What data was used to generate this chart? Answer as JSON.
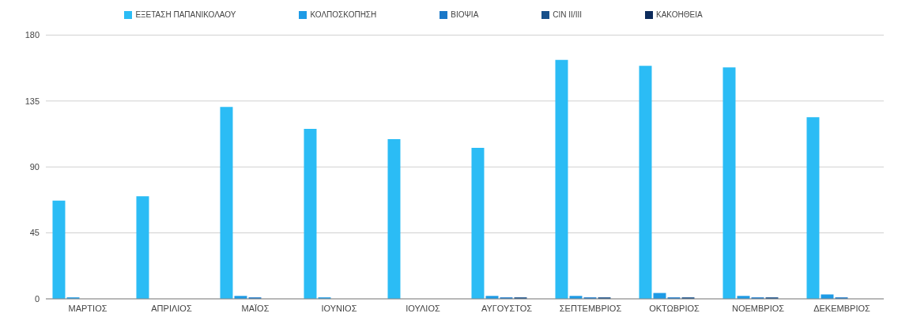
{
  "chart_data": {
    "type": "bar",
    "categories": [
      "ΜΑΡΤΙΟΣ",
      "ΑΠΡΙΛΙΟΣ",
      "ΜΑΪΟΣ",
      "ΙΟΥΝΙΟΣ",
      "ΙΟΥΛΙΟΣ",
      "ΑΥΓΟΥΣΤΟΣ",
      "ΣΕΠΤΕΜΒΡΙΟΣ",
      "ΟΚΤΩΒΡΙΟΣ",
      "ΝΟΕΜΒΡΙΟΣ",
      "ΔΕΚΕΜΒΡΙΟΣ"
    ],
    "series": [
      {
        "name": "ΕΞΕΤΑΣΗ ΠΑΠΑΝΙΚΟΛΑΟΥ",
        "color": "#2bbcf5",
        "values": [
          67,
          70,
          131,
          116,
          109,
          103,
          163,
          159,
          158,
          124
        ]
      },
      {
        "name": "ΚΟΛΠΟΣΚΟΠΗΣΗ",
        "color": "#1e9be6",
        "values": [
          1,
          0,
          2,
          1,
          0,
          2,
          2,
          4,
          2,
          3
        ]
      },
      {
        "name": "ΒΙΟΨΙΑ",
        "color": "#1a78c8",
        "values": [
          0,
          0,
          1,
          0,
          0,
          1,
          1,
          1,
          1,
          1
        ]
      },
      {
        "name": "CIN II/III",
        "color": "#164f8a",
        "values": [
          0,
          0,
          0,
          0,
          0,
          1,
          1,
          1,
          1,
          0
        ]
      },
      {
        "name": "ΚΑΚΟΗΘΕΙΑ",
        "color": "#0c2b5c",
        "values": [
          0,
          0,
          0,
          0,
          0,
          0,
          0,
          0,
          0,
          0
        ]
      }
    ],
    "ylim": [
      0,
      180
    ],
    "yticks": [
      0,
      45,
      90,
      135,
      180
    ],
    "grid": "y",
    "legend": "top"
  }
}
